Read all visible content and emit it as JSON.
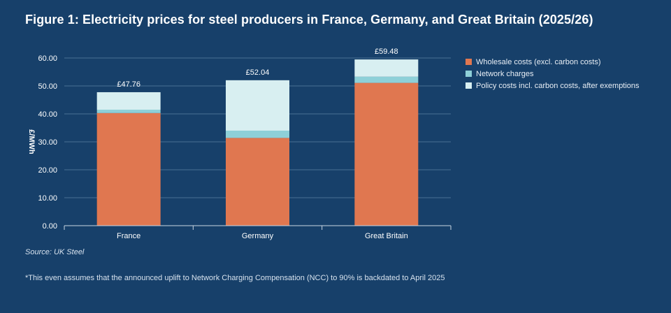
{
  "colors": {
    "background": "#17406a",
    "wholesale": "#e07750",
    "network": "#8ed0d8",
    "policy": "#d8eff1"
  },
  "chart_data": {
    "type": "bar",
    "stacked": true,
    "title": "Figure 1: Electricity prices for steel producers in France, Germany, and Great Britain (2025/26)",
    "ylabel": "£/MWh",
    "xlabel": "",
    "ylim": [
      0,
      60
    ],
    "yticks": [
      "0.00",
      "10.00",
      "20.00",
      "30.00",
      "40.00",
      "50.00",
      "60.00"
    ],
    "ytick_values": [
      0,
      10,
      20,
      30,
      40,
      50,
      60
    ],
    "categories": [
      "France",
      "Germany",
      "Great Britain"
    ],
    "series": [
      {
        "name": "Wholesale costs (excl. carbon costs)",
        "color": "#e07750",
        "values": [
          40.3,
          31.4,
          51.1
        ]
      },
      {
        "name": "Network charges",
        "color": "#8ed0d8",
        "values": [
          1.2,
          2.6,
          2.2
        ]
      },
      {
        "name": "Policy costs incl. carbon costs, after exemptions",
        "color": "#d8eff1",
        "values": [
          6.26,
          18.04,
          6.18
        ]
      }
    ],
    "totals": [
      47.76,
      52.04,
      59.48
    ],
    "total_labels": [
      "£47.76",
      "£52.04",
      "£59.48"
    ],
    "legend_position": "right",
    "grid": true
  },
  "footer": {
    "source": "Source: UK Steel",
    "note": "*This even assumes that the announced uplift to Network Charging Compensation (NCC) to 90% is backdated to April 2025"
  }
}
